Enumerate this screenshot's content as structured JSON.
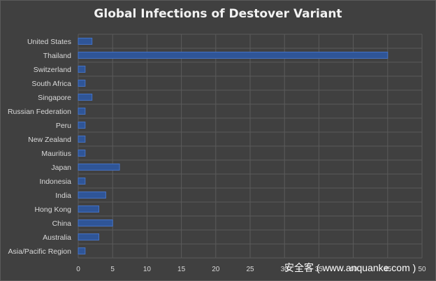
{
  "chart_data": {
    "type": "bar",
    "orientation": "horizontal",
    "title": "Global Infections of Destover Variant",
    "categories": [
      "United States",
      "Thailand",
      "Switzerland",
      "South Africa",
      "Singapore",
      "Russian Federation",
      "Peru",
      "New Zealand",
      "Mauritius",
      "Japan",
      "Indonesia",
      "India",
      "Hong Kong",
      "China",
      "Australia",
      "Asia/Pacific Region"
    ],
    "values": [
      2,
      45,
      1,
      1,
      2,
      1,
      1,
      1,
      1,
      6,
      1,
      4,
      3,
      5,
      3,
      1
    ],
    "xlim": [
      0,
      50
    ],
    "xticks": [
      "0",
      "5",
      "10",
      "15",
      "20",
      "25",
      "30",
      "35",
      "40",
      "45",
      "50"
    ],
    "grid": true,
    "bar_color": "#2f5597",
    "bar_edge": "#4472c4"
  },
  "watermark": "安全客 ( www.anquanke.com )",
  "colors": {
    "background": "#404040",
    "grid": "#5a5a5a",
    "text": "#d9d9d9"
  }
}
